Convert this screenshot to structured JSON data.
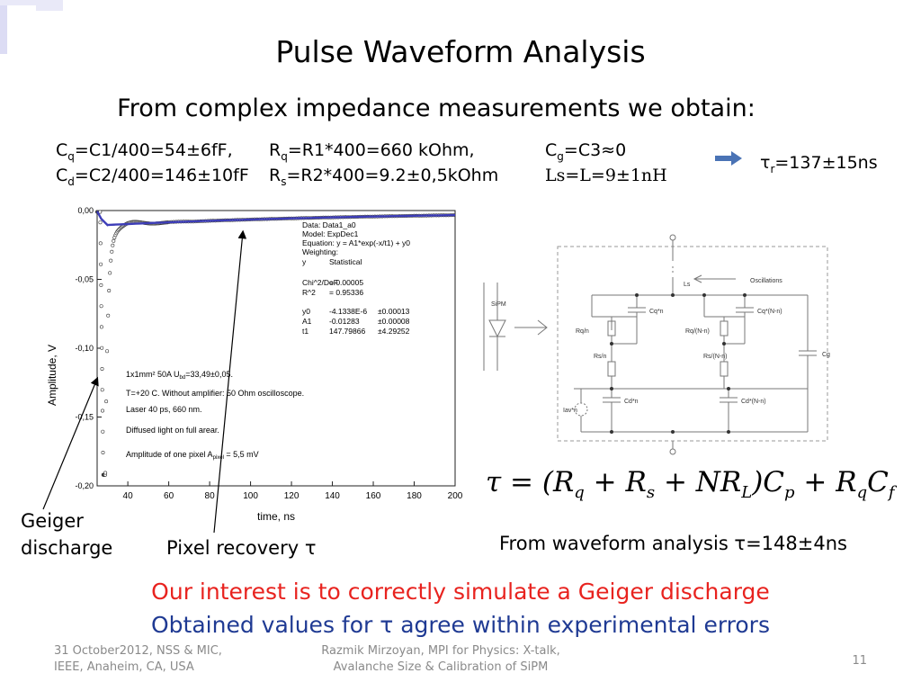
{
  "title": "Pulse Waveform Analysis",
  "subtitle": "From complex impedance measurements we obtain:",
  "params": {
    "cq": {
      "sym": "C",
      "sub": "q",
      "rest": "=C1/400=54±6fF,"
    },
    "cd": {
      "sym": "C",
      "sub": "d",
      "rest": "=C2/400=146±10fF"
    },
    "rq": {
      "sym": "R",
      "sub": "q",
      "rest": "=R1*400=660 kOhm,"
    },
    "rs": {
      "sym": "R",
      "sub": "s",
      "rest": "=R2*400=9.2±0,5kOhm"
    },
    "cg": {
      "sym": "C",
      "sub": "g",
      "rest": "=C3≈0"
    },
    "ls": "Ls=L=9±1nH",
    "taur": {
      "sym": "τ",
      "sub": "r",
      "rest": "=137±15ns"
    }
  },
  "chart_data": {
    "type": "scatter",
    "xlabel": "time, ns",
    "ylabel": "Amplitude, V",
    "xlim": [
      25,
      200
    ],
    "ylim": [
      -0.2,
      0.0
    ],
    "x_ticks": [
      "40",
      "60",
      "80",
      "100",
      "120",
      "140",
      "160",
      "180",
      "200"
    ],
    "y_ticks": [
      "0,00",
      "-0,05",
      "-0,10",
      "-0,15",
      "-0,20"
    ],
    "fit": {
      "model": "y = A1*exp(-x/t1) + y0",
      "y0": -4.1338e-06,
      "A1": -0.01283,
      "t1": 147.79866,
      "x_start": 30
    },
    "fit_box": [
      [
        "Data: Data1_a0",
        "",
        ""
      ],
      [
        "Model: ExpDec1",
        "",
        ""
      ],
      [
        "Equation: y = A1*exp(-x/t1) + y0",
        "",
        ""
      ],
      [
        "Weighting:",
        "",
        ""
      ],
      [
        "y",
        "Statistical",
        ""
      ],
      [
        "Chi^2/DoF",
        "= 0.00005",
        ""
      ],
      [
        "R^2",
        "= 0.95336",
        ""
      ],
      [
        "y0",
        "-4.1338E-6",
        "±0.00013"
      ],
      [
        "A1",
        "-0.01283",
        "±0.00008"
      ],
      [
        "t1",
        "147.79866",
        "±4.29252"
      ]
    ],
    "info": {
      "line1a": "1x1mm² 50A   U",
      "line1sub": "bd",
      "line1b": "=33,49±0,05.",
      "line2": "T=+20 C. Without amplifier: 50 Ohm oscilloscope.",
      "line3": "Laser 40 ps, 660 nm.",
      "line4": "Diffused light on full arear.",
      "line5a": "Amplitude of one pixel A",
      "line5sub": "pixel",
      "line5b": " = 5,5 mV"
    }
  },
  "circuit": {
    "sipm": "SiPM",
    "ls": "Ls",
    "oscillations": "Oscillations",
    "cq_n": "Cq*n",
    "cq_nn": "Cq*(N-n)",
    "rq_n": "Rq/n",
    "rq_nn": "Rq/(N-n)",
    "rs_n": "Rs/n",
    "rs_nn": "Rs/(N-n)",
    "cg": "Cg",
    "cd_n": "Cd*n",
    "cd_nn": "Cd*(N-n)",
    "iav": "Iav*n"
  },
  "formula": {
    "tau": "τ",
    "eq": "= (R",
    "s1": "q",
    "p2": " + R",
    "s2": "s",
    "p3": " + NR",
    "s3": "L",
    "p4": ")C",
    "s4": "p",
    "p5": " + R",
    "s5": "q",
    "p6": "C",
    "s6": "f"
  },
  "labels": {
    "geiger1": "Geiger",
    "geiger2": "discharge",
    "recovery": "Pixel recovery τ",
    "waveform": "From waveform analysis τ=148±4ns"
  },
  "conclusions": {
    "red": "Our interest is to correctly simulate a Geiger discharge",
    "blue": "Obtained values for τ agree within experimental errors"
  },
  "footer": {
    "left1": "31 October2012, NSS & MIC,",
    "left2": "IEEE, Anaheim, CA, USA",
    "center1": "Razmik Mirzoyan, MPI for Physics: X-talk,",
    "center2": "Avalanche Size & Calibration of SiPM",
    "page": "11"
  },
  "colors": {
    "red": "#e8231f",
    "blue": "#1f3a93",
    "fit": "#3d3db8",
    "corner": "#dcdcf4"
  }
}
